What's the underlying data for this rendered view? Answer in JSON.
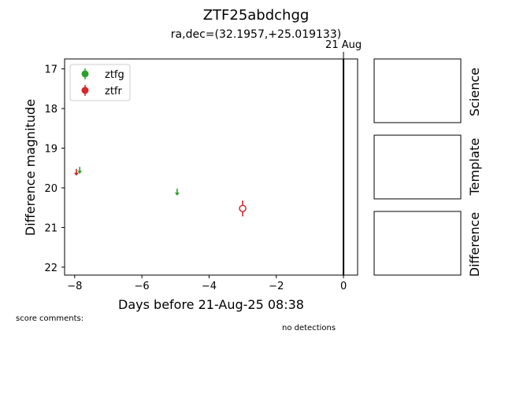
{
  "title": "ZTF25abdchgg",
  "subtitle": "ra,dec=(32.1957,+25.019133)",
  "score_comments_label": "score comments:",
  "no_detections_label": "no detections",
  "stamps": {
    "science_label": "Science",
    "template_label": "Template",
    "difference_label": "Difference"
  },
  "chart_data": {
    "type": "scatter",
    "xlabel": "Days before 21-Aug-25 08:38",
    "ylabel": "Difference magnitude",
    "xlim": [
      -8.3,
      0.42
    ],
    "ylim": [
      22.2,
      16.75
    ],
    "y_inverted": true,
    "xticks": [
      -8,
      -6,
      -4,
      -2,
      0
    ],
    "xtick_labels": [
      "−8",
      "−6",
      "−4",
      "−2",
      "0"
    ],
    "yticks": [
      17,
      18,
      19,
      20,
      21,
      22
    ],
    "ytick_labels": [
      "17",
      "18",
      "19",
      "20",
      "21",
      "22"
    ],
    "grid": false,
    "legend_position": "top-left",
    "reference_line": {
      "x": 0,
      "label": "21 Aug"
    },
    "series": [
      {
        "name": "ztfg",
        "color": "#2ca02c",
        "detections": [],
        "upper_limits": [
          {
            "x": -7.85,
            "y": 19.55
          },
          {
            "x": -4.95,
            "y": 20.1
          }
        ]
      },
      {
        "name": "ztfr",
        "color": "#d62728",
        "detections": [
          {
            "x": -3.0,
            "y": 20.52,
            "yerr": 0.2,
            "hollow": true
          }
        ],
        "upper_limits": [
          {
            "x": -7.95,
            "y": 19.6
          }
        ]
      }
    ]
  }
}
